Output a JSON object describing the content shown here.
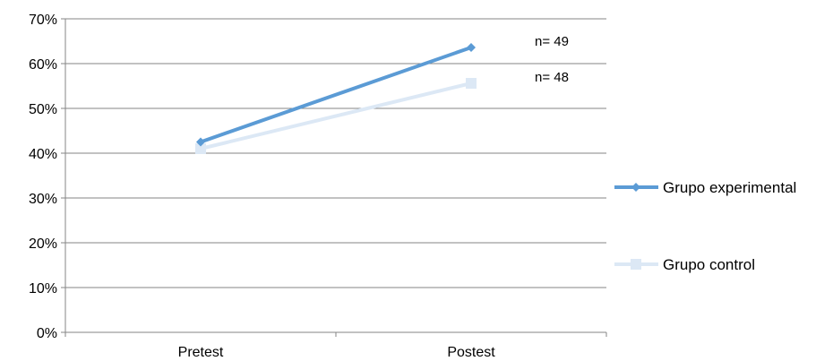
{
  "chart_data": {
    "type": "line",
    "categories": [
      "Pretest",
      "Postest"
    ],
    "ylim": [
      0,
      0.7
    ],
    "ytick_values": [
      0,
      0.1,
      0.2,
      0.3,
      0.4,
      0.5,
      0.6,
      0.7
    ],
    "ytick_labels": [
      "0%",
      "10%",
      "20%",
      "30%",
      "40%",
      "50%",
      "60%",
      "70%"
    ],
    "grid": true,
    "legend_position": "right",
    "series": [
      {
        "name": "Grupo experimental",
        "values": [
          0.425,
          0.636
        ],
        "color": "#5b9bd5",
        "marker": "diamond",
        "annotation": "n= 49"
      },
      {
        "name": "Grupo control",
        "values": [
          0.41,
          0.556
        ],
        "color": "#dce8f5",
        "marker": "square",
        "annotation": "n= 48"
      }
    ]
  }
}
